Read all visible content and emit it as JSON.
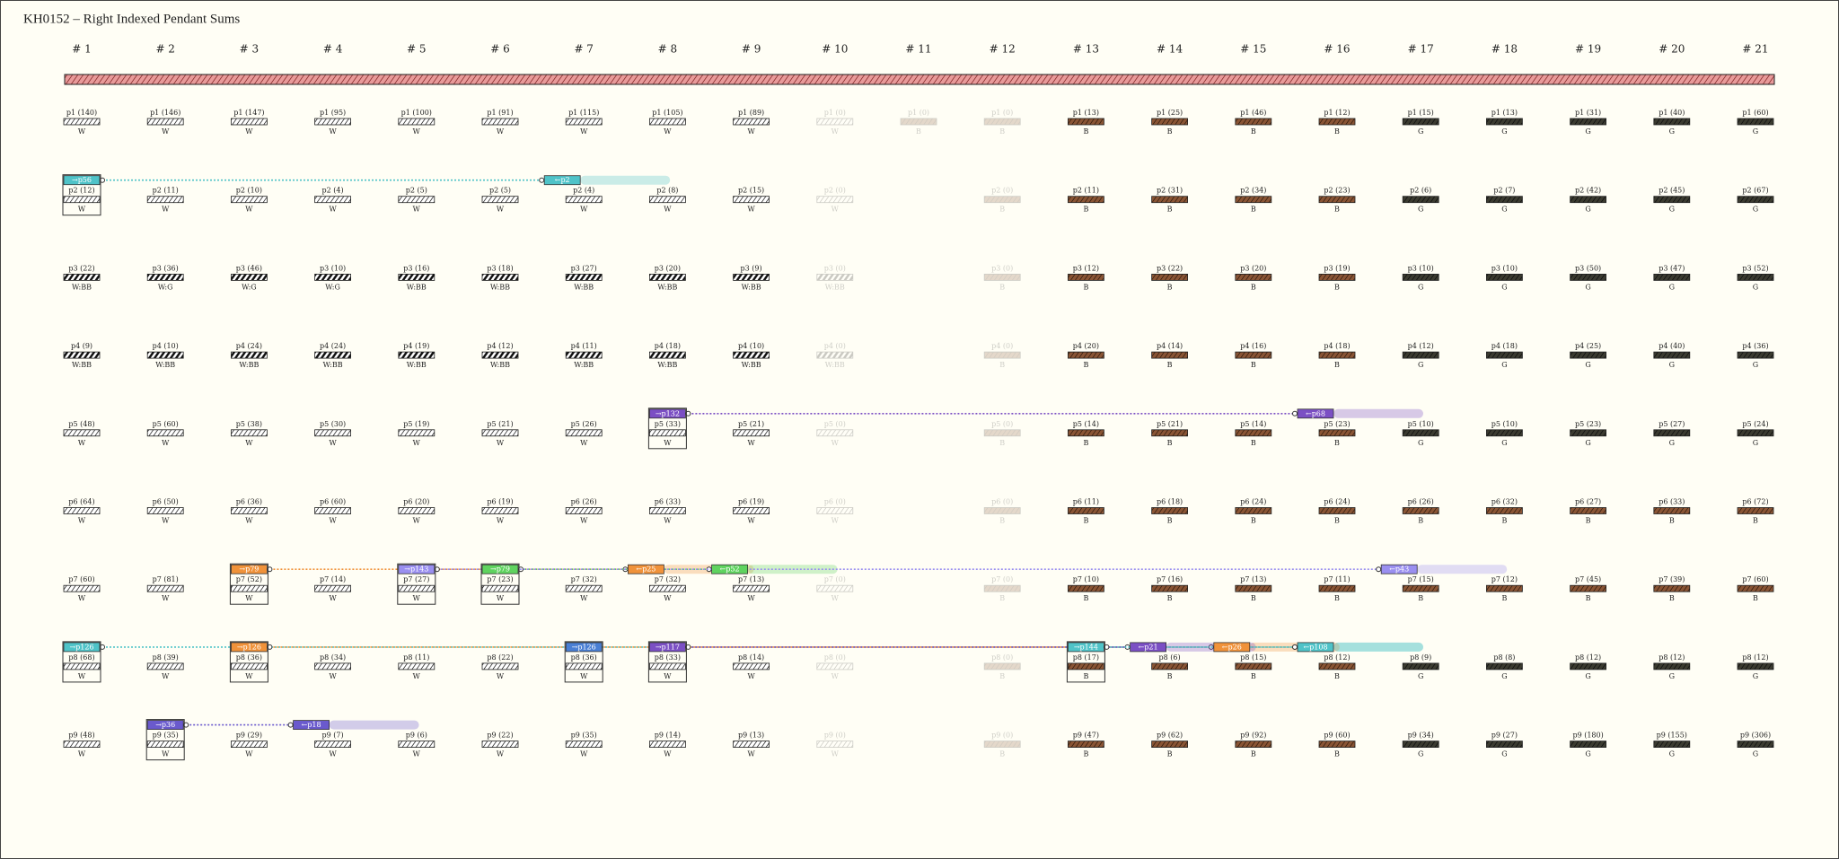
{
  "title": "KH0152 – Right Indexed Pendant Sums",
  "columns": [
    {
      "header": "# 1",
      "cells": [
        {
          "label": "p1 (140)",
          "code": "W"
        },
        {
          "label": "p2 (12)",
          "code": "W",
          "tag": {
            "text": "→p56",
            "color": "#4fc3c8"
          }
        },
        {
          "label": "p3 (22)",
          "code": "W:BB"
        },
        {
          "label": "p4 (9)",
          "code": "W:BB"
        },
        {
          "label": "p5 (48)",
          "code": "W"
        },
        {
          "label": "p6 (64)",
          "code": "W"
        },
        {
          "label": "p7 (60)",
          "code": "W"
        },
        {
          "label": "p8 (68)",
          "code": "W",
          "tag": {
            "text": "→p126",
            "color": "#4fc3c8"
          }
        },
        {
          "label": "p9 (48)",
          "code": "W"
        }
      ]
    },
    {
      "header": "# 2",
      "cells": [
        {
          "label": "p1 (146)",
          "code": "W"
        },
        {
          "label": "p2 (11)",
          "code": "W"
        },
        {
          "label": "p3 (36)",
          "code": "W:G"
        },
        {
          "label": "p4 (10)",
          "code": "W:BB"
        },
        {
          "label": "p5 (60)",
          "code": "W"
        },
        {
          "label": "p6 (50)",
          "code": "W"
        },
        {
          "label": "p7 (81)",
          "code": "W"
        },
        {
          "label": "p8 (39)",
          "code": "W"
        },
        {
          "label": "p9 (35)",
          "code": "W",
          "tag": {
            "text": "→p36",
            "color": "#6a5acd"
          }
        }
      ]
    },
    {
      "header": "# 3",
      "cells": [
        {
          "label": "p1 (147)",
          "code": "W"
        },
        {
          "label": "p2 (10)",
          "code": "W"
        },
        {
          "label": "p3 (46)",
          "code": "W:G"
        },
        {
          "label": "p4 (24)",
          "code": "W:BB"
        },
        {
          "label": "p5 (38)",
          "code": "W"
        },
        {
          "label": "p6 (36)",
          "code": "W"
        },
        {
          "label": "p7 (52)",
          "code": "W",
          "tag": {
            "text": "→p79",
            "color": "#f0923a"
          }
        },
        {
          "label": "p8 (36)",
          "code": "W",
          "tag": {
            "text": "→p126",
            "color": "#f0923a"
          }
        },
        {
          "label": "p9 (29)",
          "code": "W"
        }
      ]
    },
    {
      "header": "# 4",
      "cells": [
        {
          "label": "p1 (95)",
          "code": "W"
        },
        {
          "label": "p2 (4)",
          "code": "W"
        },
        {
          "label": "p3 (10)",
          "code": "W:G"
        },
        {
          "label": "p4 (24)",
          "code": "W:BB"
        },
        {
          "label": "p5 (30)",
          "code": "W"
        },
        {
          "label": "p6 (60)",
          "code": "W"
        },
        {
          "label": "p7 (14)",
          "code": "W"
        },
        {
          "label": "p8 (34)",
          "code": "W"
        },
        {
          "label": "p9 (7)",
          "code": "W",
          "tag": {
            "text": "←p18",
            "color": "#6a5acd"
          }
        }
      ]
    },
    {
      "header": "# 5",
      "cells": [
        {
          "label": "p1 (100)",
          "code": "W"
        },
        {
          "label": "p2 (5)",
          "code": "W"
        },
        {
          "label": "p3 (16)",
          "code": "W:BB"
        },
        {
          "label": "p4 (19)",
          "code": "W:BB"
        },
        {
          "label": "p5 (19)",
          "code": "W"
        },
        {
          "label": "p6 (20)",
          "code": "W"
        },
        {
          "label": "p7 (27)",
          "code": "W",
          "tag": {
            "text": "→p143",
            "color": "#9a8ff0"
          }
        },
        {
          "label": "p8 (11)",
          "code": "W"
        },
        {
          "label": "p9 (6)",
          "code": "W"
        }
      ]
    },
    {
      "header": "# 6",
      "cells": [
        {
          "label": "p1 (91)",
          "code": "W"
        },
        {
          "label": "p2 (5)",
          "code": "W"
        },
        {
          "label": "p3 (18)",
          "code": "W:BB"
        },
        {
          "label": "p4 (12)",
          "code": "W:BB"
        },
        {
          "label": "p5 (21)",
          "code": "W"
        },
        {
          "label": "p6 (19)",
          "code": "W"
        },
        {
          "label": "p7 (23)",
          "code": "W",
          "tag": {
            "text": "→p79",
            "color": "#5fd35f"
          }
        },
        {
          "label": "p8 (22)",
          "code": "W"
        },
        {
          "label": "p9 (22)",
          "code": "W"
        }
      ]
    },
    {
      "header": "# 7",
      "cells": [
        {
          "label": "p1 (115)",
          "code": "W"
        },
        {
          "label": "p2 (4)",
          "code": "W",
          "tag": {
            "text": "←p2",
            "color": "#4fc3c8"
          }
        },
        {
          "label": "p3 (27)",
          "code": "W:BB"
        },
        {
          "label": "p4 (11)",
          "code": "W:BB"
        },
        {
          "label": "p5 (26)",
          "code": "W"
        },
        {
          "label": "p6 (26)",
          "code": "W"
        },
        {
          "label": "p7 (32)",
          "code": "W"
        },
        {
          "label": "p8 (36)",
          "code": "W",
          "tag": {
            "text": "→p126",
            "color": "#4a7fd4"
          }
        },
        {
          "label": "p9 (35)",
          "code": "W"
        }
      ]
    },
    {
      "header": "# 8",
      "cells": [
        {
          "label": "p1 (105)",
          "code": "W"
        },
        {
          "label": "p2 (8)",
          "code": "W"
        },
        {
          "label": "p3 (20)",
          "code": "W:BB"
        },
        {
          "label": "p4 (18)",
          "code": "W:BB"
        },
        {
          "label": "p5 (33)",
          "code": "W",
          "tag": {
            "text": "→p132",
            "color": "#7b4fc4"
          }
        },
        {
          "label": "p6 (33)",
          "code": "W"
        },
        {
          "label": "p7 (32)",
          "code": "W",
          "tag": {
            "text": "←p25",
            "color": "#f0923a"
          }
        },
        {
          "label": "p8 (33)",
          "code": "W",
          "tag": {
            "text": "→p117",
            "color": "#7b4fc4"
          }
        },
        {
          "label": "p9 (14)",
          "code": "W"
        }
      ]
    },
    {
      "header": "# 9",
      "cells": [
        {
          "label": "p1 (89)",
          "code": "W"
        },
        {
          "label": "p2 (15)",
          "code": "W"
        },
        {
          "label": "p3 (9)",
          "code": "W:BB"
        },
        {
          "label": "p4 (10)",
          "code": "W:BB"
        },
        {
          "label": "p5 (21)",
          "code": "W"
        },
        {
          "label": "p6 (19)",
          "code": "W"
        },
        {
          "label": "p7 (13)",
          "code": "W",
          "tag": {
            "text": "←p52",
            "color": "#5fd35f"
          }
        },
        {
          "label": "p8 (14)",
          "code": "W"
        },
        {
          "label": "p9 (13)",
          "code": "W"
        }
      ]
    },
    {
      "header": "# 10",
      "faded": true,
      "cells": [
        {
          "label": "p1 (0)",
          "code": "W"
        },
        {
          "label": "p2 (0)",
          "code": "W"
        },
        {
          "label": "p3 (0)",
          "code": "W:BB"
        },
        {
          "label": "p4 (0)",
          "code": "W:BB"
        },
        {
          "label": "p5 (0)",
          "code": "W"
        },
        {
          "label": "p6 (0)",
          "code": "W"
        },
        {
          "label": "p7 (0)",
          "code": "W"
        },
        {
          "label": "p8 (0)",
          "code": "W"
        },
        {
          "label": "p9 (0)",
          "code": "W"
        }
      ]
    },
    {
      "header": "# 11",
      "faded": true,
      "cells": [
        {
          "label": "p1 (0)",
          "code": "B"
        }
      ]
    },
    {
      "header": "# 12",
      "faded": true,
      "cells": [
        {
          "label": "p1 (0)",
          "code": "B"
        },
        {
          "label": "p2 (0)",
          "code": "B"
        },
        {
          "label": "p3 (0)",
          "code": "B"
        },
        {
          "label": "p4 (0)",
          "code": "B"
        },
        {
          "label": "p5 (0)",
          "code": "B"
        },
        {
          "label": "p6 (0)",
          "code": "B"
        },
        {
          "label": "p7 (0)",
          "code": "B"
        },
        {
          "label": "p8 (0)",
          "code": "B"
        },
        {
          "label": "p9 (0)",
          "code": "B"
        }
      ]
    },
    {
      "header": "# 13",
      "cells": [
        {
          "label": "p1 (13)",
          "code": "B"
        },
        {
          "label": "p2 (11)",
          "code": "B"
        },
        {
          "label": "p3 (12)",
          "code": "B"
        },
        {
          "label": "p4 (20)",
          "code": "B"
        },
        {
          "label": "p5 (14)",
          "code": "B"
        },
        {
          "label": "p6 (11)",
          "code": "B"
        },
        {
          "label": "p7 (10)",
          "code": "B"
        },
        {
          "label": "p8 (17)",
          "code": "B",
          "tag": {
            "text": "→p144",
            "color": "#4fc3c8"
          }
        },
        {
          "label": "p9 (47)",
          "code": "B"
        }
      ]
    },
    {
      "header": "# 14",
      "cells": [
        {
          "label": "p1 (25)",
          "code": "B"
        },
        {
          "label": "p2 (31)",
          "code": "B"
        },
        {
          "label": "p3 (22)",
          "code": "B"
        },
        {
          "label": "p4 (14)",
          "code": "B"
        },
        {
          "label": "p5 (21)",
          "code": "B"
        },
        {
          "label": "p6 (18)",
          "code": "B"
        },
        {
          "label": "p7 (16)",
          "code": "B"
        },
        {
          "label": "p8 (6)",
          "code": "B",
          "tag": {
            "text": "←p21",
            "color": "#7b4fc4"
          }
        },
        {
          "label": "p9 (62)",
          "code": "B"
        }
      ]
    },
    {
      "header": "# 15",
      "cells": [
        {
          "label": "p1 (46)",
          "code": "B"
        },
        {
          "label": "p2 (34)",
          "code": "B"
        },
        {
          "label": "p3 (20)",
          "code": "B"
        },
        {
          "label": "p4 (16)",
          "code": "B"
        },
        {
          "label": "p5 (14)",
          "code": "B"
        },
        {
          "label": "p6 (24)",
          "code": "B"
        },
        {
          "label": "p7 (13)",
          "code": "B"
        },
        {
          "label": "p8 (15)",
          "code": "B",
          "tag": {
            "text": "←p26",
            "color": "#f0923a"
          }
        },
        {
          "label": "p9 (92)",
          "code": "B"
        }
      ]
    },
    {
      "header": "# 16",
      "cells": [
        {
          "label": "p1 (12)",
          "code": "B"
        },
        {
          "label": "p2 (23)",
          "code": "B"
        },
        {
          "label": "p3 (19)",
          "code": "B"
        },
        {
          "label": "p4 (18)",
          "code": "B"
        },
        {
          "label": "p5 (23)",
          "code": "B",
          "tag": {
            "text": "←p68",
            "color": "#7b4fc4"
          }
        },
        {
          "label": "p6 (24)",
          "code": "B"
        },
        {
          "label": "p7 (11)",
          "code": "B"
        },
        {
          "label": "p8 (12)",
          "code": "B",
          "tag": {
            "text": "←p108",
            "color": "#4fc3c8"
          }
        },
        {
          "label": "p9 (60)",
          "code": "B"
        }
      ]
    },
    {
      "header": "# 17",
      "cells": [
        {
          "label": "p1 (15)",
          "code": "G"
        },
        {
          "label": "p2 (6)",
          "code": "G"
        },
        {
          "label": "p3 (10)",
          "code": "G"
        },
        {
          "label": "p4 (12)",
          "code": "G"
        },
        {
          "label": "p5 (10)",
          "code": "G"
        },
        {
          "label": "p6 (26)",
          "code": "B"
        },
        {
          "label": "p7 (15)",
          "code": "B",
          "tag": {
            "text": "←p43",
            "color": "#9a8ff0"
          }
        },
        {
          "label": "p8 (9)",
          "code": "G"
        },
        {
          "label": "p9 (34)",
          "code": "G"
        }
      ]
    },
    {
      "header": "# 18",
      "cells": [
        {
          "label": "p1 (13)",
          "code": "G"
        },
        {
          "label": "p2 (7)",
          "code": "G"
        },
        {
          "label": "p3 (10)",
          "code": "G"
        },
        {
          "label": "p4 (18)",
          "code": "G"
        },
        {
          "label": "p5 (10)",
          "code": "G"
        },
        {
          "label": "p6 (32)",
          "code": "B"
        },
        {
          "label": "p7 (12)",
          "code": "B"
        },
        {
          "label": "p8 (8)",
          "code": "G"
        },
        {
          "label": "p9 (27)",
          "code": "G"
        }
      ]
    },
    {
      "header": "# 19",
      "cells": [
        {
          "label": "p1 (31)",
          "code": "G"
        },
        {
          "label": "p2 (42)",
          "code": "G"
        },
        {
          "label": "p3 (50)",
          "code": "G"
        },
        {
          "label": "p4 (25)",
          "code": "G"
        },
        {
          "label": "p5 (23)",
          "code": "G"
        },
        {
          "label": "p6 (27)",
          "code": "B"
        },
        {
          "label": "p7 (45)",
          "code": "B"
        },
        {
          "label": "p8 (12)",
          "code": "G"
        },
        {
          "label": "p9 (180)",
          "code": "G"
        }
      ]
    },
    {
      "header": "# 20",
      "cells": [
        {
          "label": "p1 (40)",
          "code": "G"
        },
        {
          "label": "p2 (45)",
          "code": "G"
        },
        {
          "label": "p3 (47)",
          "code": "G"
        },
        {
          "label": "p4 (40)",
          "code": "G"
        },
        {
          "label": "p5 (27)",
          "code": "G"
        },
        {
          "label": "p6 (33)",
          "code": "B"
        },
        {
          "label": "p7 (39)",
          "code": "B"
        },
        {
          "label": "p8 (12)",
          "code": "G"
        },
        {
          "label": "p9 (155)",
          "code": "G"
        }
      ]
    },
    {
      "header": "# 21",
      "cells": [
        {
          "label": "p1 (60)",
          "code": "G"
        },
        {
          "label": "p2 (67)",
          "code": "G"
        },
        {
          "label": "p3 (52)",
          "code": "G"
        },
        {
          "label": "p4 (36)",
          "code": "G"
        },
        {
          "label": "p5 (24)",
          "code": "G"
        },
        {
          "label": "p6 (72)",
          "code": "B"
        },
        {
          "label": "p7 (60)",
          "code": "B"
        },
        {
          "label": "p8 (12)",
          "code": "G"
        },
        {
          "label": "p9 (306)",
          "code": "G"
        }
      ]
    }
  ],
  "links": [
    {
      "from": "columns.0.cells.1.tag",
      "to": "columns.6.cells.1.tag"
    },
    {
      "from": "columns.7.cells.4.tag",
      "to": "columns.15.cells.4.tag"
    },
    {
      "from": "columns.2.cells.6.tag",
      "to": "columns.7.cells.6.tag"
    },
    {
      "from": "columns.5.cells.6.tag",
      "to": "columns.8.cells.6.tag"
    },
    {
      "from": "columns.4.cells.6.tag",
      "to": "columns.16.cells.6.tag"
    },
    {
      "from": "columns.0.cells.7.tag",
      "to": "columns.15.cells.7.tag"
    },
    {
      "from": "columns.2.cells.7.tag",
      "to": "columns.14.cells.7.tag"
    },
    {
      "from": "columns.7.cells.7.tag",
      "to": "columns.13.cells.7.tag"
    },
    {
      "from": "columns.12.cells.7.tag",
      "to": "columns.15.cells.7.tag"
    },
    {
      "from": "columns.1.cells.8.tag",
      "to": "columns.3.cells.8.tag"
    }
  ]
}
